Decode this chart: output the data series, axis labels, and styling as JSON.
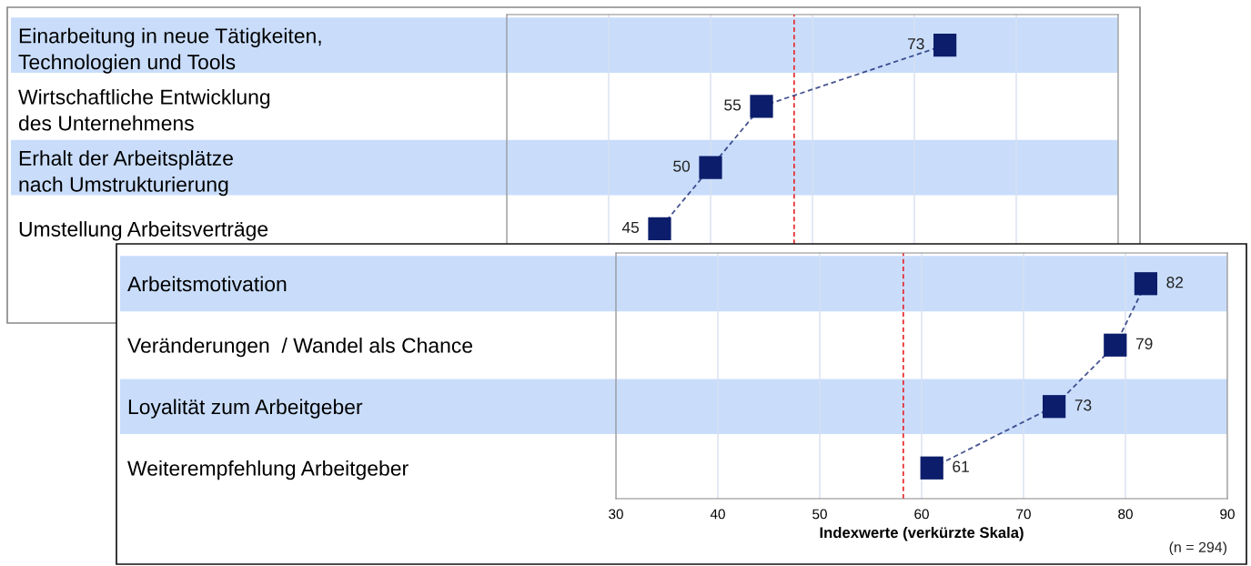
{
  "chart_data": [
    {
      "type": "line",
      "orientation": "horizontal",
      "categories": [
        "Einarbeitung in neue Tätigkeiten,\nTechnologien und Tools",
        "Wirtschaftliche Entwicklung\ndes Unternehmens",
        "Erhalt der Arbeitsplätze\nnach Umstrukturierung",
        "Umstellung Arbeitsverträge"
      ],
      "series": [
        {
          "color": "#0b1d6b",
          "values": [
            73,
            55,
            50,
            45
          ]
        }
      ],
      "marker": "square",
      "line_style": "dashed",
      "data_labels": true,
      "xlim": [
        30,
        90
      ],
      "xticks": [
        {
          "value": 30,
          "label": null
        },
        {
          "value": 40,
          "label": null
        },
        {
          "value": 50,
          "label": null
        },
        {
          "value": 60,
          "label": null
        },
        {
          "value": 70,
          "label": null
        },
        {
          "value": 80,
          "label": null
        },
        {
          "value": 90,
          "label": null
        }
      ],
      "tick_labels": "y",
      "grid": "x",
      "ref_lines": [
        {
          "axis": "x",
          "value": 58.2,
          "color": "#e8262a",
          "line_style": "dashed"
        }
      ],
      "bands": [
        {
          "axis": "y",
          "from": "Einarbeitung in neue Tätigkeiten,\nTechnologien und Tools",
          "to": "Einarbeitung in neue Tätigkeiten,\nTechnologien und Tools",
          "color": "#c9ddfb"
        },
        {
          "axis": "y",
          "from": "Erhalt der Arbeitsplätze\nnach Umstrukturierung",
          "to": "Erhalt der Arbeitsplätze\nnach Umstrukturierung",
          "color": "#c9ddfb"
        }
      ]
    },
    {
      "type": "line",
      "orientation": "horizontal",
      "categories": [
        "Arbeitsmotivation",
        "Veränderungen  / Wandel als Chance",
        "Loyalität zum Arbeitgeber",
        "Weiterempfehlung Arbeitgeber"
      ],
      "series": [
        {
          "color": "#0b1d6b",
          "values": [
            82,
            79,
            73,
            61
          ]
        }
      ],
      "marker": "square",
      "line_style": "dashed",
      "data_labels": true,
      "xlim": [
        30,
        90
      ],
      "xticks": [
        30,
        40,
        50,
        60,
        70,
        80,
        90
      ],
      "xlabel": "Indexwerte (verkürzte Skala)",
      "grid": "x",
      "ref_lines": [
        {
          "axis": "x",
          "value": 58.2,
          "color": "#e8262a",
          "line_style": "dashed"
        }
      ],
      "bands": [
        {
          "axis": "y",
          "from": "Arbeitsmotivation",
          "to": "Arbeitsmotivation",
          "color": "#c9ddfb"
        },
        {
          "axis": "y",
          "from": "Loyalität zum Arbeitgeber",
          "to": "Loyalität zum Arbeitgeber",
          "color": "#c9ddfb"
        }
      ],
      "annotations": [
        "(n = 294)"
      ]
    }
  ]
}
